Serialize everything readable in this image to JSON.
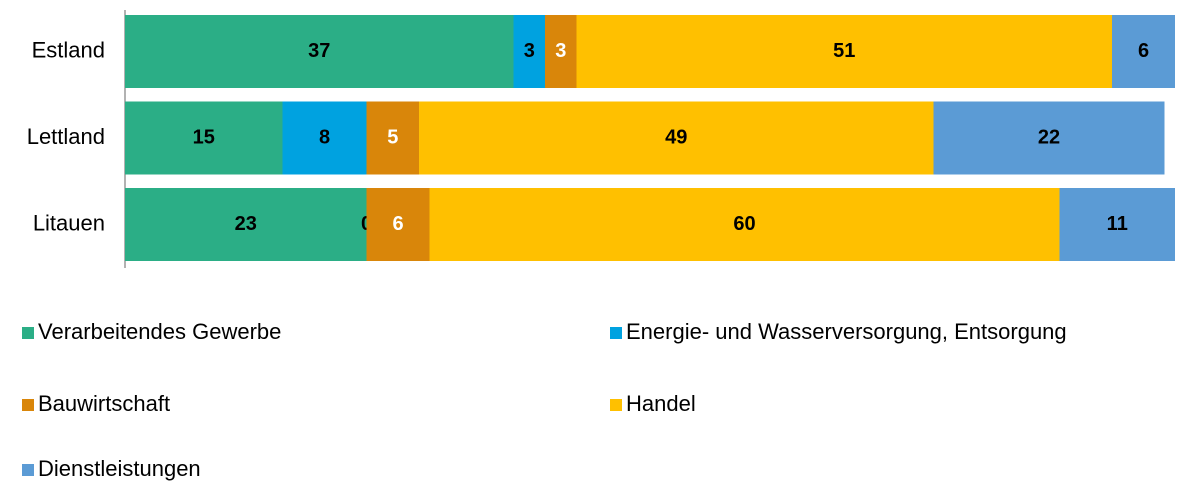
{
  "chart_data": {
    "type": "stacked_barh",
    "categories": [
      "Estland",
      "Lettland",
      "Litauen"
    ],
    "series": [
      {
        "name": "Verarbeitendes Gewerbe",
        "color": "#2bae86",
        "label_color": "#000000",
        "values": [
          37,
          15,
          23
        ]
      },
      {
        "name": "Energie- und Wasserversorgung, Entsorgung",
        "color": "#00a2e0",
        "label_color": "#000000",
        "values": [
          3,
          8,
          0
        ]
      },
      {
        "name": "Bauwirtschaft",
        "color": "#d9860a",
        "label_color": "#ffffff",
        "values": [
          3,
          5,
          6
        ]
      },
      {
        "name": "Handel",
        "color": "#ffc000",
        "label_color": "#000000",
        "values": [
          51,
          49,
          60
        ]
      },
      {
        "name": "Dienstleistungen",
        "color": "#5b9bd5",
        "label_color": "#000000",
        "values": [
          6,
          22,
          11
        ]
      }
    ],
    "xlim": [
      0,
      100
    ],
    "legend": "bottom"
  }
}
